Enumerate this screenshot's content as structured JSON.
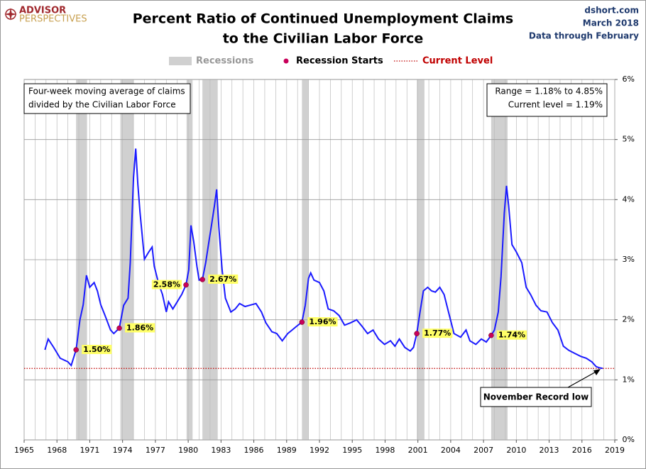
{
  "chart_data": {
    "type": "line",
    "logo": [
      "ADVISOR",
      "PERSPECTIVES"
    ],
    "title": [
      "Percent Ratio of Continued Unemployment Claims",
      "to the Civilian Labor Force"
    ],
    "source": [
      "dshort.com",
      "March 2018",
      "Data through February"
    ],
    "color": "#1a1aff",
    "x": [
      1966.9,
      1967.2,
      1967.7,
      1968.3,
      1969.0,
      1969.3,
      1969.75,
      1970.1,
      1970.4,
      1970.7,
      1971.0,
      1971.4,
      1971.7,
      1972.0,
      1972.4,
      1972.9,
      1973.2,
      1973.7,
      1974.1,
      1974.5,
      1974.7,
      1975.0,
      1975.2,
      1975.4,
      1975.6,
      1976.0,
      1976.4,
      1976.7,
      1976.9,
      1977.3,
      1977.65,
      1978.0,
      1978.2,
      1978.6,
      1979.0,
      1979.4,
      1979.8,
      1980.05,
      1980.25,
      1980.5,
      1980.8,
      1981.0,
      1981.3,
      1981.6,
      1981.9,
      1982.1,
      1982.4,
      1982.6,
      1982.8,
      1983.1,
      1983.4,
      1983.9,
      1984.3,
      1984.7,
      1985.2,
      1985.6,
      1986.2,
      1986.7,
      1987.1,
      1987.65,
      1988.1,
      1988.6,
      1989.1,
      1989.5,
      1989.9,
      1990.4,
      1990.7,
      1991.0,
      1991.2,
      1991.5,
      1992.0,
      1992.4,
      1992.8,
      1993.3,
      1993.8,
      1994.3,
      1994.85,
      1995.4,
      1995.9,
      1996.4,
      1996.9,
      1997.4,
      1997.95,
      1998.5,
      1998.9,
      1999.3,
      1999.8,
      2000.3,
      2000.6,
      2000.9,
      2001.2,
      2001.5,
      2001.9,
      2002.25,
      2002.6,
      2003.0,
      2003.4,
      2003.8,
      2004.3,
      2004.9,
      2005.4,
      2005.75,
      2006.3,
      2006.8,
      2007.25,
      2007.7,
      2008.0,
      2008.35,
      2008.6,
      2008.9,
      2009.1,
      2009.3,
      2009.6,
      2010.0,
      2010.5,
      2010.9,
      2011.3,
      2011.8,
      2012.25,
      2012.8,
      2013.3,
      2013.8,
      2014.3,
      2014.8,
      2015.35,
      2015.9,
      2016.4,
      2016.9,
      2017.3,
      2017.6,
      2017.9
    ],
    "values": [
      1.5,
      1.68,
      1.54,
      1.36,
      1.3,
      1.24,
      1.5,
      2.0,
      2.25,
      2.74,
      2.54,
      2.62,
      2.48,
      2.25,
      2.07,
      1.83,
      1.77,
      1.86,
      2.24,
      2.36,
      2.95,
      4.37,
      4.85,
      4.25,
      3.78,
      3.01,
      3.13,
      3.21,
      2.89,
      2.6,
      2.42,
      2.13,
      2.3,
      2.18,
      2.3,
      2.42,
      2.58,
      2.83,
      3.57,
      3.31,
      2.89,
      2.66,
      2.67,
      2.95,
      3.31,
      3.54,
      3.9,
      4.17,
      3.54,
      2.83,
      2.36,
      2.13,
      2.18,
      2.27,
      2.22,
      2.24,
      2.27,
      2.13,
      1.95,
      1.8,
      1.77,
      1.65,
      1.77,
      1.83,
      1.89,
      1.96,
      2.24,
      2.69,
      2.78,
      2.66,
      2.62,
      2.48,
      2.18,
      2.15,
      2.07,
      1.91,
      1.95,
      2.0,
      1.89,
      1.77,
      1.83,
      1.68,
      1.59,
      1.65,
      1.56,
      1.68,
      1.54,
      1.48,
      1.54,
      1.77,
      2.13,
      2.48,
      2.54,
      2.48,
      2.46,
      2.54,
      2.42,
      2.13,
      1.77,
      1.71,
      1.83,
      1.65,
      1.59,
      1.68,
      1.63,
      1.74,
      1.83,
      2.13,
      2.72,
      3.78,
      4.23,
      3.9,
      3.25,
      3.13,
      2.95,
      2.54,
      2.42,
      2.24,
      2.15,
      2.13,
      1.95,
      1.83,
      1.56,
      1.49,
      1.44,
      1.39,
      1.36,
      1.3,
      1.22,
      1.2,
      1.19
    ],
    "recessions": {
      "name": "Recessions",
      "color": "#d0d0d0",
      "spans": [
        [
          1969.75,
          1970.75
        ],
        [
          1973.8,
          1975.0
        ],
        [
          1979.85,
          1980.4
        ],
        [
          1981.3,
          1982.7
        ],
        [
          1990.4,
          1991.0
        ],
        [
          2000.9,
          2001.6
        ],
        [
          2007.7,
          2009.2
        ]
      ]
    },
    "recession_starts": {
      "name": "Recession Starts",
      "color": "#c8005a",
      "x": [
        1969.75,
        1973.7,
        1979.8,
        1981.3,
        1990.4,
        2000.9,
        2007.7
      ],
      "values": [
        1.5,
        1.86,
        2.58,
        2.67,
        1.96,
        1.77,
        1.74
      ],
      "value_labels": [
        "1.50%",
        "1.86%",
        "2.58%",
        "2.67%",
        "1.96%",
        "1.77%",
        "1.74%"
      ]
    },
    "current_level": {
      "name": "Current Level",
      "color": "#c00000",
      "value": 1.19
    },
    "note": [
      "Four-week moving average of claims",
      "divided by the Civilian Labor Force"
    ],
    "stats": [
      "Range = 1.18% to 4.85%",
      "Current level = 1.19%"
    ],
    "callout": "November Record low",
    "xlim": [
      1965,
      2019
    ],
    "xticks": [
      1965,
      1968,
      1971,
      1974,
      1977,
      1980,
      1983,
      1986,
      1989,
      1992,
      1995,
      1998,
      2001,
      2004,
      2007,
      2010,
      2013,
      2016,
      2019
    ],
    "x_grid_step": 1,
    "ylim": [
      0,
      6
    ],
    "yticks": [
      {
        "value": 0,
        "label": "0%"
      },
      {
        "value": 1,
        "label": "1%"
      },
      {
        "value": 2,
        "label": "2%"
      },
      {
        "value": 3,
        "label": "3%"
      },
      {
        "value": 4,
        "label": "4%"
      },
      {
        "value": 5,
        "label": "5%"
      },
      {
        "value": 6,
        "label": "6%"
      }
    ],
    "grid": true
  }
}
